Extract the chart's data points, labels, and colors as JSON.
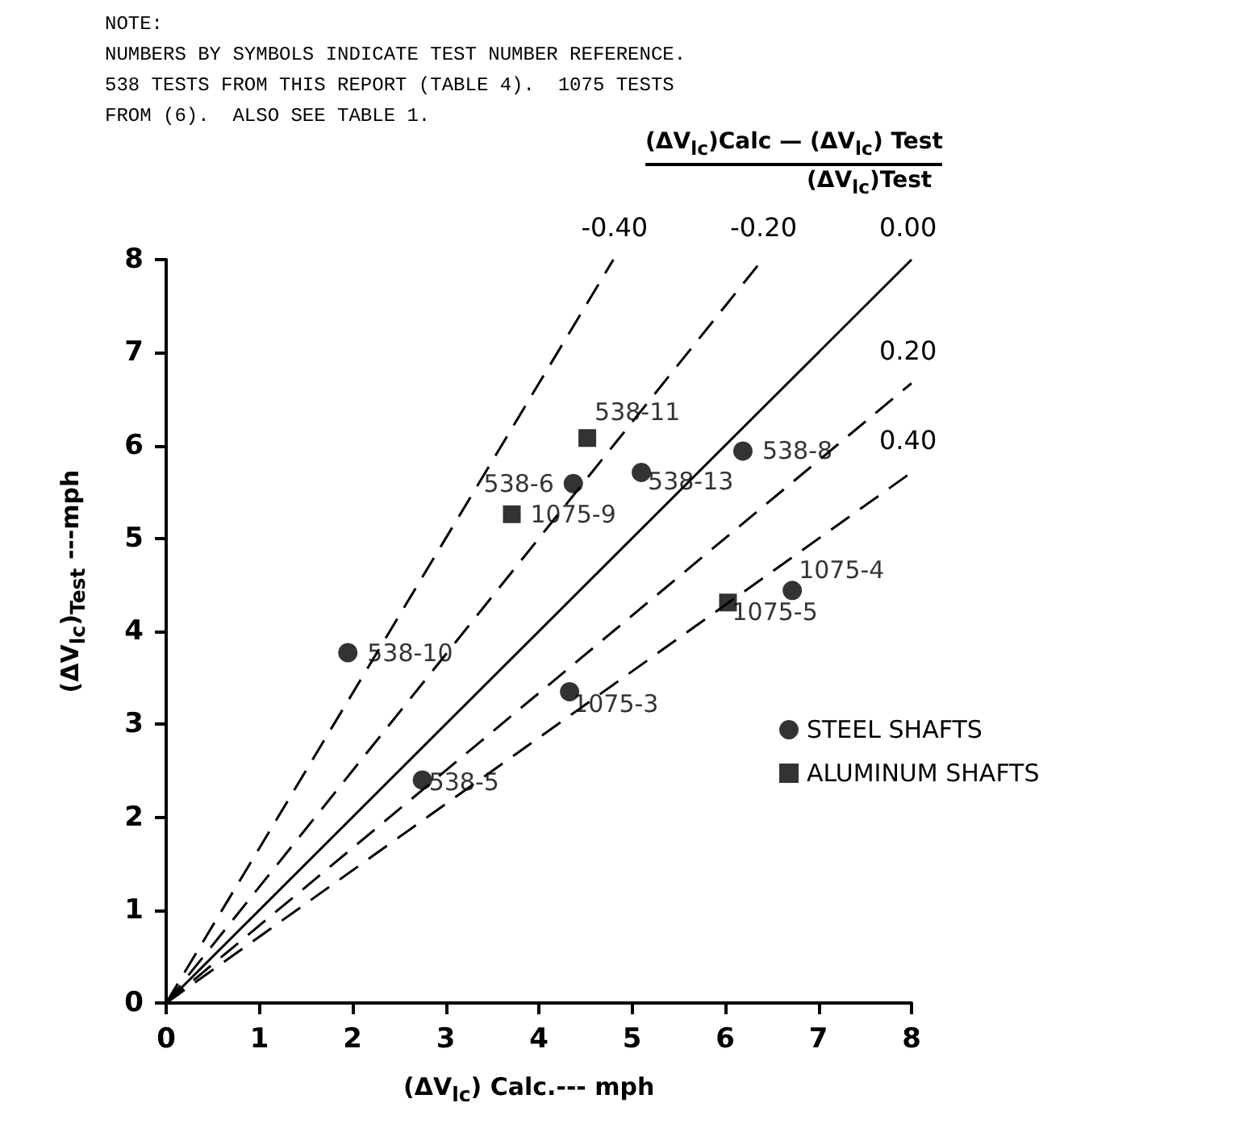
{
  "chart_data": {
    "type": "scatter",
    "xlabel": "(ΔV$_{lc}$) Calc.--- mph",
    "ylabel": "(ΔV$_{lc}$)$_{Test}$ ---mph",
    "annotations": [
      "NOTE:\nNUMBERS BY SYMBOLS INDICATE TEST NUMBER REFERENCE.\n538 TESTS FROM THIS REPORT (TABLE 4).  1075 TESTS\nFROM (6).  ALSO SEE TABLE 1.",
      "(ΔV$_{lc}$)Calc — (ΔV$_{lc}$) Test",
      "(ΔV$_{lc}$)Test"
    ],
    "series": [
      {
        "name": "STEEL SHAFTS",
        "marker": "circle",
        "color": "#000000",
        "x": [
          1.95,
          2.75,
          4.33,
          4.37,
          5.1,
          6.19,
          6.72
        ],
        "values": [
          3.77,
          2.4,
          3.35,
          5.59,
          5.71,
          5.94,
          4.44
        ],
        "value_labels": [
          "538-10",
          "538-5",
          "1075-3",
          "538-6",
          "538-13",
          "538-8",
          "1075-4"
        ]
      },
      {
        "name": "ALUMINUM SHAFTS",
        "marker": "square",
        "color": "#000000",
        "x": [
          3.71,
          4.52,
          6.03
        ],
        "values": [
          5.26,
          6.08,
          4.31
        ],
        "value_labels": [
          "1075-9",
          "538-11",
          "1075-5"
        ]
      },
      {
        "name": "-0.40",
        "type": "line",
        "marker": "none",
        "line_style": "dashed",
        "color": "#000000",
        "x": [
          0,
          4.8
        ],
        "values": [
          0,
          8
        ]
      },
      {
        "name": "-0.20",
        "type": "line",
        "marker": "none",
        "line_style": "dashed",
        "color": "#000000",
        "x": [
          0,
          6.4
        ],
        "values": [
          0,
          8
        ]
      },
      {
        "name": "0.00",
        "type": "line",
        "marker": "none",
        "line_style": "solid",
        "color": "#000000",
        "x": [
          0,
          8
        ],
        "values": [
          0,
          8
        ]
      },
      {
        "name": "0.20",
        "type": "line",
        "marker": "none",
        "line_style": "dashed",
        "color": "#000000",
        "x": [
          0,
          8
        ],
        "values": [
          0,
          6.67
        ]
      },
      {
        "name": "0.40",
        "type": "line",
        "marker": "none",
        "line_style": "dashed",
        "color": "#000000",
        "x": [
          0,
          8
        ],
        "values": [
          0,
          5.71
        ]
      }
    ],
    "xlim": [
      0,
      8
    ],
    "xticks": [
      0,
      1,
      2,
      3,
      4,
      5,
      6,
      7,
      8
    ],
    "ylim": [
      0,
      8
    ],
    "yticks": [
      0,
      1,
      2,
      3,
      4,
      5,
      6,
      7,
      8
    ],
    "grid": false,
    "legend": "right"
  }
}
